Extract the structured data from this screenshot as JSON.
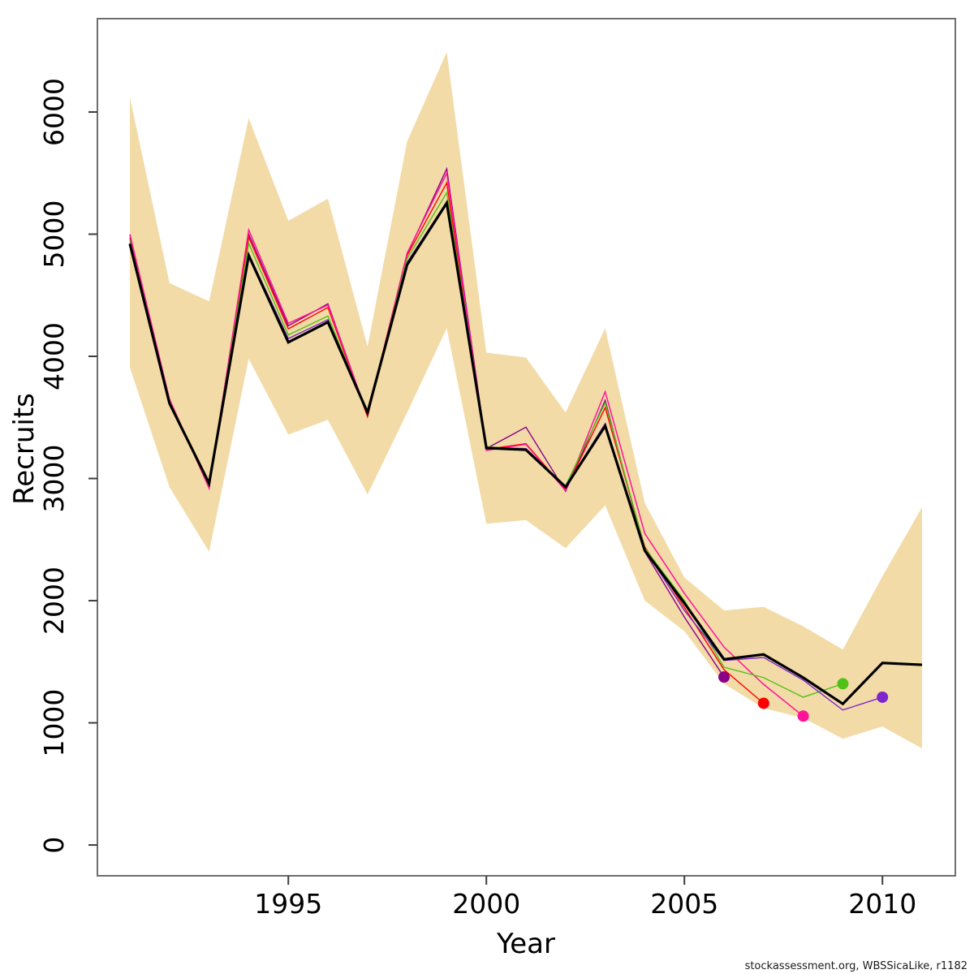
{
  "chart_data": {
    "type": "line",
    "title": "",
    "xlabel": "Year",
    "ylabel": "Recruits",
    "footer": "stockassessment.org, WBSSicaLike, r1182",
    "xlim": [
      1990.18,
      2011.84
    ],
    "ylim": [
      -252,
      6764
    ],
    "grid": "off",
    "legend": "none",
    "x_ticks": [
      1995,
      2000,
      2005,
      2010
    ],
    "y_ticks": [
      0,
      1000,
      2000,
      3000,
      4000,
      5000,
      6000
    ],
    "years": [
      1991,
      1992,
      1993,
      1994,
      1995,
      1996,
      1997,
      1998,
      1999,
      2000,
      2001,
      2002,
      2003,
      2004,
      2005,
      2006,
      2007,
      2008,
      2009,
      2010,
      2011
    ],
    "band": {
      "name": "confidence-band",
      "color": "#F2DBA7",
      "years": [
        1991,
        1992,
        1993,
        1994,
        1995,
        1996,
        1997,
        1998,
        1999,
        2000,
        2001,
        2002,
        2003,
        2004,
        2005,
        2006,
        2007,
        2008,
        2009,
        2010,
        2011
      ],
      "lower": [
        3910,
        2930,
        2400,
        3980,
        3360,
        3480,
        2870,
        3540,
        4230,
        2630,
        2660,
        2430,
        2780,
        2000,
        1750,
        1320,
        1120,
        1040,
        870,
        970,
        790
      ],
      "upper": [
        6120,
        4600,
        4450,
        5950,
        5110,
        5290,
        4080,
        5760,
        6490,
        4030,
        3990,
        3540,
        4230,
        2800,
        2190,
        1920,
        1950,
        1790,
        1600,
        2200,
        2765
      ]
    },
    "series": [
      {
        "name": "retro-2006",
        "color": "#8B008B",
        "width": 1.4,
        "start_year": 1991,
        "end_dot": true,
        "values": [
          4970,
          3635,
          2940,
          5000,
          4250,
          4430,
          3515,
          4835,
          5535,
          3245,
          3420,
          2895,
          3640,
          2400,
          1865,
          1375
        ]
      },
      {
        "name": "retro-2007",
        "color": "#FF0000",
        "width": 1.4,
        "start_year": 1991,
        "end_dot": true,
        "values": [
          4990,
          3640,
          2930,
          4975,
          4225,
          4400,
          3505,
          4825,
          5420,
          3240,
          3285,
          2910,
          3580,
          2440,
          1945,
          1435,
          1160
        ]
      },
      {
        "name": "retro-2008",
        "color": "#FF1499",
        "width": 1.5,
        "start_year": 1991,
        "end_dot": true,
        "values": [
          5000,
          3650,
          2920,
          5035,
          4270,
          4420,
          3520,
          4845,
          5500,
          3230,
          3280,
          2900,
          3710,
          2550,
          2060,
          1620,
          1315,
          1055
        ]
      },
      {
        "name": "retro-2009",
        "color": "#52C116",
        "width": 1.4,
        "start_year": 1991,
        "end_dot": true,
        "values": [
          4950,
          3630,
          2945,
          4925,
          4175,
          4330,
          3530,
          4800,
          5340,
          3260,
          3240,
          2940,
          3620,
          2430,
          2000,
          1455,
          1370,
          1210,
          1320
        ]
      },
      {
        "name": "retro-2010",
        "color": "#7D26CD",
        "width": 1.4,
        "start_year": 1991,
        "end_dot": true,
        "values": [
          4930,
          3620,
          2950,
          4840,
          4145,
          4300,
          3540,
          4770,
          5265,
          3255,
          3245,
          2935,
          3450,
          2420,
          1920,
          1510,
          1535,
          1350,
          1105,
          1210
        ]
      },
      {
        "name": "final-assessment",
        "color": "#000000",
        "width": 3.2,
        "start_year": 1991,
        "end_dot": false,
        "values": [
          4920,
          3615,
          2960,
          4825,
          4115,
          4280,
          3540,
          4750,
          5255,
          3250,
          3235,
          2930,
          3430,
          2410,
          1980,
          1520,
          1560,
          1370,
          1155,
          1490,
          1475
        ]
      }
    ],
    "frame_color": "#6e6e6e",
    "tick_color": "#3c3c3c",
    "label_color": "#000000"
  }
}
